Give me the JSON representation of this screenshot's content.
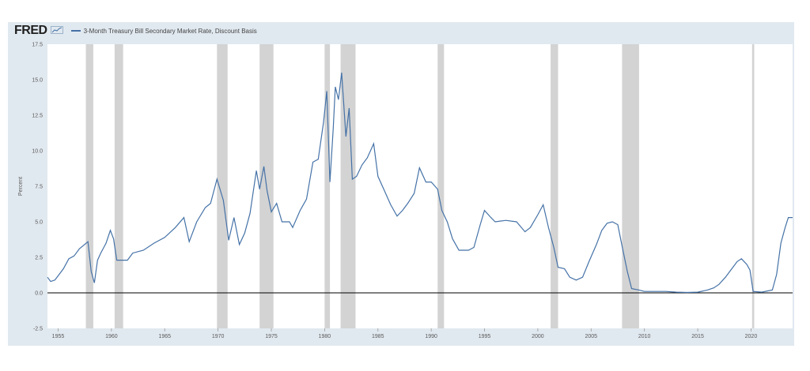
{
  "header": {
    "brand": "FRED",
    "series_label": "3-Month Treasury Bill Secondary Market Rate, Discount Basis"
  },
  "colors": {
    "line": "#4572a7",
    "recession": "#d3d3d3",
    "background": "#e1e9f0",
    "plot": "#ffffff",
    "zero_line": "#000000"
  },
  "chart_data": {
    "type": "line",
    "title": "",
    "xlabel": "",
    "ylabel": "Percent",
    "xlim": [
      1954.0,
      2023.9
    ],
    "ylim": [
      -2.5,
      17.5
    ],
    "yticks": [
      -2.5,
      0.0,
      2.5,
      5.0,
      7.5,
      10.0,
      12.5,
      15.0,
      17.5
    ],
    "ytick_labels": [
      "-2.5",
      "0.0",
      "2.5",
      "5.0",
      "7.5",
      "10.0",
      "12.5",
      "15.0",
      "17.5"
    ],
    "xticks": [
      1955,
      1960,
      1965,
      1970,
      1975,
      1980,
      1985,
      1990,
      1995,
      2000,
      2005,
      2010,
      2015,
      2020
    ],
    "xtick_labels": [
      "1955",
      "1960",
      "1965",
      "1970",
      "1975",
      "1980",
      "1985",
      "1990",
      "1995",
      "2000",
      "2005",
      "2010",
      "2015",
      "2020"
    ],
    "grid": "horizontal-none",
    "legend": "top-left",
    "recessions": [
      [
        1957.6,
        1958.3
      ],
      [
        1960.3,
        1961.1
      ],
      [
        1969.9,
        1970.9
      ],
      [
        1973.9,
        1975.2
      ],
      [
        1980.0,
        1980.5
      ],
      [
        1981.5,
        1982.9
      ],
      [
        1990.6,
        1991.2
      ],
      [
        2001.2,
        2001.9
      ],
      [
        2007.9,
        2009.5
      ],
      [
        2020.1,
        2020.3
      ]
    ],
    "series": [
      {
        "values": [
          [
            1954.0,
            1.1
          ],
          [
            1954.3,
            0.8
          ],
          [
            1954.7,
            0.9
          ],
          [
            1955.0,
            1.2
          ],
          [
            1955.5,
            1.7
          ],
          [
            1956.0,
            2.4
          ],
          [
            1956.5,
            2.6
          ],
          [
            1957.0,
            3.1
          ],
          [
            1957.8,
            3.6
          ],
          [
            1958.1,
            1.5
          ],
          [
            1958.4,
            0.7
          ],
          [
            1958.7,
            2.3
          ],
          [
            1959.0,
            2.8
          ],
          [
            1959.5,
            3.5
          ],
          [
            1959.9,
            4.4
          ],
          [
            1960.2,
            3.8
          ],
          [
            1960.5,
            2.3
          ],
          [
            1961.0,
            2.3
          ],
          [
            1961.5,
            2.3
          ],
          [
            1962.0,
            2.8
          ],
          [
            1963.0,
            3.0
          ],
          [
            1964.0,
            3.5
          ],
          [
            1965.0,
            3.9
          ],
          [
            1966.0,
            4.6
          ],
          [
            1966.8,
            5.3
          ],
          [
            1967.3,
            3.6
          ],
          [
            1968.0,
            5.0
          ],
          [
            1968.8,
            6.0
          ],
          [
            1969.3,
            6.3
          ],
          [
            1969.9,
            8.0
          ],
          [
            1970.5,
            6.5
          ],
          [
            1971.0,
            3.7
          ],
          [
            1971.5,
            5.3
          ],
          [
            1972.0,
            3.4
          ],
          [
            1972.5,
            4.2
          ],
          [
            1973.0,
            5.6
          ],
          [
            1973.6,
            8.6
          ],
          [
            1973.9,
            7.3
          ],
          [
            1974.3,
            8.9
          ],
          [
            1974.6,
            7.2
          ],
          [
            1975.0,
            5.7
          ],
          [
            1975.5,
            6.3
          ],
          [
            1976.0,
            5.0
          ],
          [
            1976.7,
            5.0
          ],
          [
            1977.0,
            4.6
          ],
          [
            1977.7,
            5.8
          ],
          [
            1978.3,
            6.6
          ],
          [
            1978.9,
            9.2
          ],
          [
            1979.4,
            9.4
          ],
          [
            1979.9,
            12.0
          ],
          [
            1980.2,
            14.2
          ],
          [
            1980.5,
            7.8
          ],
          [
            1980.8,
            11.5
          ],
          [
            1981.0,
            14.5
          ],
          [
            1981.3,
            13.6
          ],
          [
            1981.6,
            15.5
          ],
          [
            1982.0,
            11.0
          ],
          [
            1982.3,
            13.0
          ],
          [
            1982.6,
            8.0
          ],
          [
            1983.0,
            8.2
          ],
          [
            1983.5,
            9.0
          ],
          [
            1984.0,
            9.5
          ],
          [
            1984.6,
            10.5
          ],
          [
            1985.0,
            8.2
          ],
          [
            1985.6,
            7.2
          ],
          [
            1986.2,
            6.2
          ],
          [
            1986.8,
            5.4
          ],
          [
            1987.3,
            5.8
          ],
          [
            1987.8,
            6.3
          ],
          [
            1988.4,
            7.0
          ],
          [
            1988.9,
            8.8
          ],
          [
            1989.5,
            7.8
          ],
          [
            1990.0,
            7.8
          ],
          [
            1990.6,
            7.3
          ],
          [
            1991.0,
            5.8
          ],
          [
            1991.5,
            5.0
          ],
          [
            1992.0,
            3.8
          ],
          [
            1992.6,
            3.0
          ],
          [
            1993.0,
            3.0
          ],
          [
            1993.5,
            3.0
          ],
          [
            1994.0,
            3.2
          ],
          [
            1994.6,
            4.8
          ],
          [
            1995.0,
            5.8
          ],
          [
            1995.6,
            5.3
          ],
          [
            1996.0,
            5.0
          ],
          [
            1997.0,
            5.1
          ],
          [
            1998.0,
            5.0
          ],
          [
            1998.8,
            4.3
          ],
          [
            1999.3,
            4.6
          ],
          [
            2000.0,
            5.5
          ],
          [
            2000.5,
            6.2
          ],
          [
            2001.0,
            4.6
          ],
          [
            2001.5,
            3.2
          ],
          [
            2001.9,
            1.8
          ],
          [
            2002.5,
            1.7
          ],
          [
            2003.0,
            1.1
          ],
          [
            2003.6,
            0.9
          ],
          [
            2004.2,
            1.1
          ],
          [
            2004.8,
            2.2
          ],
          [
            2005.5,
            3.4
          ],
          [
            2006.0,
            4.4
          ],
          [
            2006.5,
            4.9
          ],
          [
            2007.0,
            5.0
          ],
          [
            2007.5,
            4.8
          ],
          [
            2007.9,
            3.3
          ],
          [
            2008.4,
            1.5
          ],
          [
            2008.8,
            0.3
          ],
          [
            2009.5,
            0.2
          ],
          [
            2010.0,
            0.1
          ],
          [
            2011.0,
            0.1
          ],
          [
            2012.0,
            0.1
          ],
          [
            2013.0,
            0.05
          ],
          [
            2014.0,
            0.03
          ],
          [
            2015.0,
            0.05
          ],
          [
            2015.9,
            0.2
          ],
          [
            2016.5,
            0.35
          ],
          [
            2017.0,
            0.6
          ],
          [
            2017.6,
            1.1
          ],
          [
            2018.2,
            1.7
          ],
          [
            2018.7,
            2.2
          ],
          [
            2019.1,
            2.4
          ],
          [
            2019.6,
            2.0
          ],
          [
            2019.9,
            1.6
          ],
          [
            2020.2,
            0.1
          ],
          [
            2021.0,
            0.05
          ],
          [
            2022.0,
            0.2
          ],
          [
            2022.4,
            1.3
          ],
          [
            2022.8,
            3.5
          ],
          [
            2023.2,
            4.6
          ],
          [
            2023.5,
            5.3
          ],
          [
            2023.9,
            5.3
          ]
        ]
      }
    ]
  }
}
